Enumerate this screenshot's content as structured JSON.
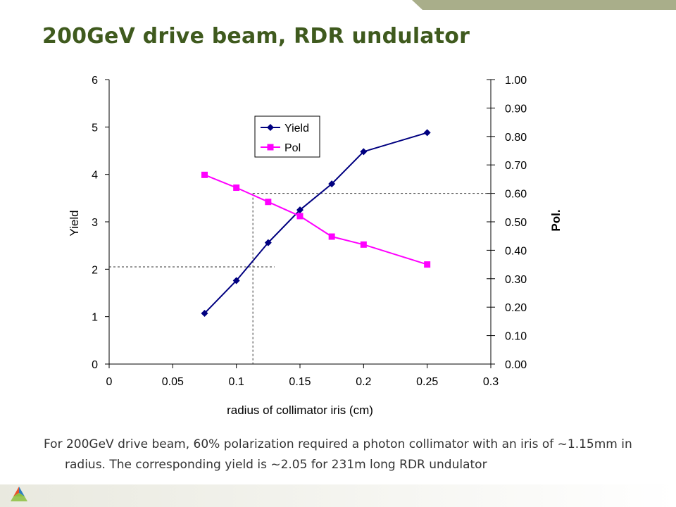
{
  "slide": {
    "title": "200GeV drive beam, RDR undulator",
    "caption": "For 200GeV drive beam, 60% polarization required a photon collimator with an iris of ~1.15mm in radius.  The corresponding yield is ~2.05 for 231m long RDR undulator",
    "colors": {
      "title": "#3f5a1e",
      "band": "#b5b99a",
      "logo": [
        "#e8512a",
        "#2d7fc1",
        "#8dbf3f"
      ]
    },
    "logo_icon": "tri-color-triangle-logo-icon"
  },
  "chart_data": {
    "type": "line",
    "title": "",
    "xlabel": "radius of collimator iris (cm)",
    "ylabel": "Yield",
    "y2label": "Pol.",
    "xlim": [
      0,
      0.3
    ],
    "ylim": [
      0,
      6
    ],
    "y2lim": [
      0,
      1.0
    ],
    "x_ticks": [
      "0",
      "0.05",
      "0.1",
      "0.15",
      "0.2",
      "0.25",
      "0.3"
    ],
    "y_ticks": [
      "0",
      "1",
      "2",
      "3",
      "4",
      "5",
      "6"
    ],
    "y2_ticks": [
      "0.00",
      "0.10",
      "0.20",
      "0.30",
      "0.40",
      "0.50",
      "0.60",
      "0.70",
      "0.80",
      "0.90",
      "1.00"
    ],
    "grid": false,
    "legend": "top-center, inside plot",
    "series": [
      {
        "name": "Yield",
        "axis": "left",
        "color": "#000080",
        "marker": "diamond",
        "x": [
          0.075,
          0.1,
          0.125,
          0.15,
          0.175,
          0.2,
          0.25
        ],
        "values": [
          1.07,
          1.76,
          2.56,
          3.25,
          3.8,
          4.48,
          4.88
        ]
      },
      {
        "name": "Pol",
        "axis": "right",
        "color": "#ff00ff",
        "marker": "square",
        "x": [
          0.075,
          0.1,
          0.125,
          0.15,
          0.175,
          0.2,
          0.25
        ],
        "values": [
          0.665,
          0.62,
          0.57,
          0.52,
          0.448,
          0.42,
          0.35
        ]
      }
    ],
    "reference_lines": [
      {
        "name": "vertical-at-radius",
        "x": 0.113
      },
      {
        "name": "yield-level",
        "y": 2.05
      },
      {
        "name": "pol-level",
        "y2": 0.6
      }
    ]
  }
}
